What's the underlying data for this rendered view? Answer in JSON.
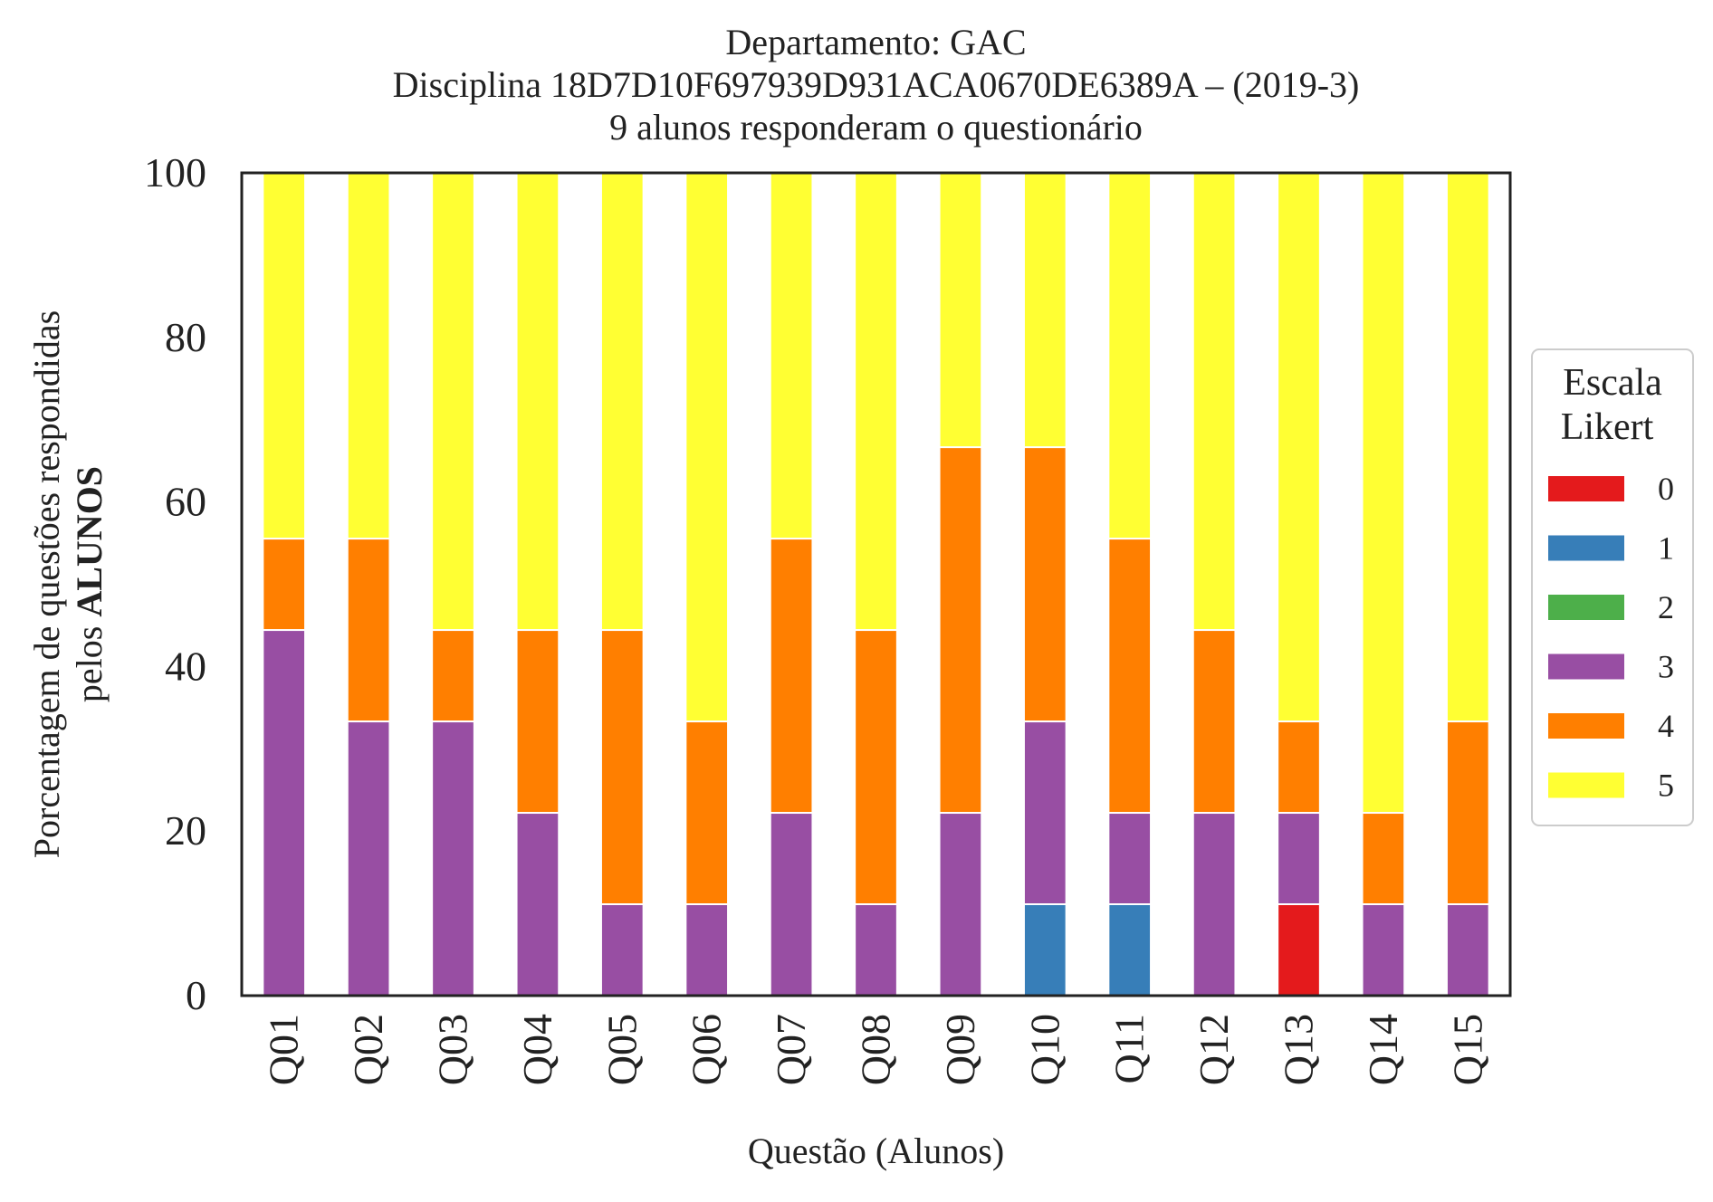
{
  "chart_data": {
    "type": "bar",
    "stacked": true,
    "title_lines": [
      "Departamento: GAC",
      "Disciplina 18D7D10F697939D931ACA0670DE6389A – (2019-3)",
      "9 alunos responderam o questionário"
    ],
    "xlabel": "Questão (Alunos)",
    "ylabel_line1": "Porcentagem de questões respondidas",
    "ylabel_line2_prefix": "pelos ",
    "ylabel_line2_bold": "ALUNOS",
    "ylim": [
      0,
      100
    ],
    "yticks": [
      "0",
      "20",
      "40",
      "60",
      "80",
      "100"
    ],
    "grid": false,
    "legend": {
      "position": "right",
      "title_line1": "Escala",
      "title_line2": "Likert"
    },
    "categories": [
      "Q01",
      "Q02",
      "Q03",
      "Q04",
      "Q05",
      "Q06",
      "Q07",
      "Q08",
      "Q09",
      "Q10",
      "Q11",
      "Q12",
      "Q13",
      "Q14",
      "Q15"
    ],
    "series": [
      {
        "name": "0",
        "color": "#e41a1c",
        "values": [
          0,
          0,
          0,
          0,
          0,
          0,
          0,
          0,
          0,
          0,
          0,
          0,
          11.11,
          0,
          0
        ]
      },
      {
        "name": "1",
        "color": "#377eb8",
        "values": [
          0,
          0,
          0,
          0,
          0,
          0,
          0,
          0,
          0,
          11.11,
          11.11,
          0,
          0,
          0,
          0
        ]
      },
      {
        "name": "2",
        "color": "#4daf4a",
        "values": [
          0,
          0,
          0,
          0,
          0,
          0,
          0,
          0,
          0,
          0,
          0,
          0,
          0,
          0,
          0
        ]
      },
      {
        "name": "3",
        "color": "#984ea3",
        "values": [
          44.44,
          33.33,
          33.33,
          22.22,
          11.11,
          11.11,
          22.22,
          11.11,
          22.22,
          22.22,
          11.11,
          22.22,
          11.11,
          11.11,
          11.11
        ]
      },
      {
        "name": "4",
        "color": "#ff7f00",
        "values": [
          11.11,
          22.22,
          11.11,
          22.22,
          33.33,
          22.22,
          33.33,
          33.33,
          44.44,
          33.33,
          33.33,
          22.22,
          11.11,
          11.11,
          22.22
        ]
      },
      {
        "name": "5",
        "color": "#ffff33",
        "values": [
          44.44,
          44.44,
          55.56,
          55.56,
          55.56,
          66.67,
          44.44,
          55.56,
          33.33,
          33.33,
          44.44,
          55.56,
          66.67,
          77.78,
          66.67
        ]
      }
    ]
  }
}
